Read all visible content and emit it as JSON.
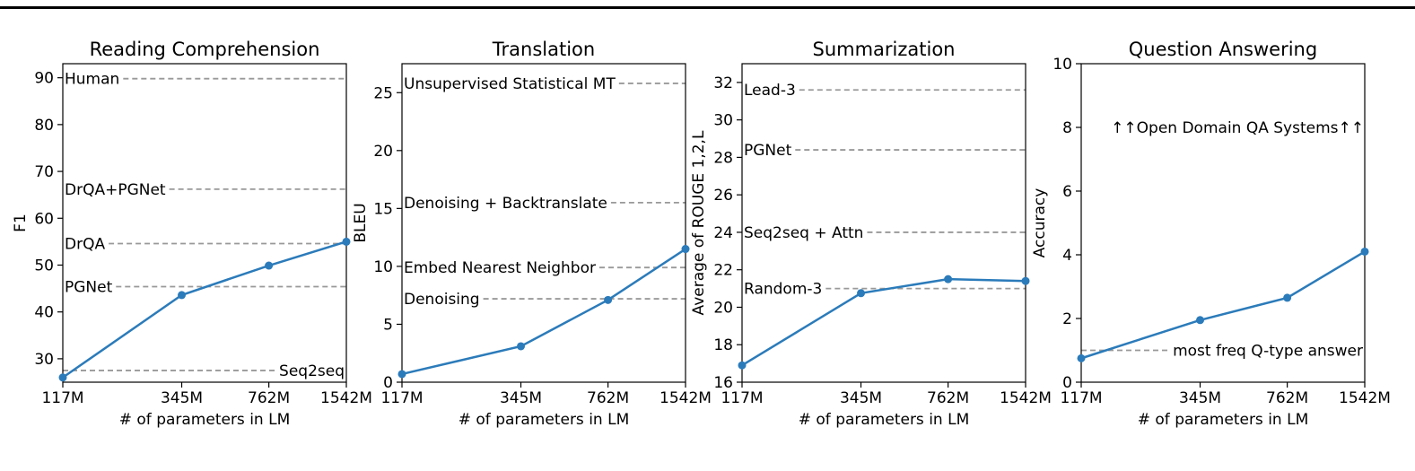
{
  "chart_data": [
    {
      "type": "line",
      "title": "Reading Comprehension",
      "xlabel": "# of parameters in LM",
      "ylabel": "F1",
      "x_scale": "log",
      "x": [
        117,
        345,
        762,
        1542
      ],
      "x_ticks": [
        "117M",
        "345M",
        "762M",
        "1542M"
      ],
      "ylim": [
        25,
        93
      ],
      "y_ticks": [
        30,
        40,
        50,
        60,
        70,
        80,
        90
      ],
      "series": [
        {
          "values": [
            26,
            43.6,
            49.9,
            55
          ]
        }
      ],
      "references": [
        {
          "label": "Human",
          "value": 89.8
        },
        {
          "label": "DrQA+PGNet",
          "value": 66.2
        },
        {
          "label": "DrQA",
          "value": 54.6
        },
        {
          "label": "PGNet",
          "value": 45.4
        },
        {
          "label": "Seq2seq",
          "value": 27.5
        }
      ],
      "grid": false,
      "line_color": "#2b7bba",
      "reference_color": "#999999"
    },
    {
      "type": "line",
      "title": "Translation",
      "xlabel": "# of parameters in LM",
      "ylabel": "BLEU",
      "x_scale": "log",
      "x": [
        117,
        345,
        762,
        1542
      ],
      "x_ticks": [
        "117M",
        "345M",
        "762M",
        "1542M"
      ],
      "ylim": [
        0,
        27.5
      ],
      "y_ticks": [
        0,
        5,
        10,
        15,
        20,
        25
      ],
      "series": [
        {
          "values": [
            0.7,
            3.1,
            7.1,
            11.5
          ]
        }
      ],
      "references": [
        {
          "label": "Unsupervised Statistical MT",
          "value": 25.8
        },
        {
          "label": "Denoising + Backtranslate",
          "value": 15.5
        },
        {
          "label": "Embed Nearest Neighbor",
          "value": 9.9
        },
        {
          "label": "Denoising",
          "value": 7.2
        }
      ],
      "grid": false,
      "line_color": "#2b7bba",
      "reference_color": "#999999"
    },
    {
      "type": "line",
      "title": "Summarization",
      "xlabel": "# of parameters in LM",
      "ylabel": "Average of ROUGE 1,2,L",
      "x_scale": "log",
      "x": [
        117,
        345,
        762,
        1542
      ],
      "x_ticks": [
        "117M",
        "345M",
        "762M",
        "1542M"
      ],
      "ylim": [
        16,
        33
      ],
      "y_ticks": [
        16,
        18,
        20,
        22,
        24,
        26,
        28,
        30,
        32
      ],
      "series": [
        {
          "values": [
            16.9,
            20.75,
            21.5,
            21.4
          ]
        }
      ],
      "references": [
        {
          "label": "Lead-3",
          "value": 31.6
        },
        {
          "label": "PGNet",
          "value": 28.4
        },
        {
          "label": "Seq2seq + Attn",
          "value": 24
        },
        {
          "label": "Random-3",
          "value": 21
        }
      ],
      "grid": false,
      "line_color": "#2b7bba",
      "reference_color": "#999999"
    },
    {
      "type": "line",
      "title": "Question Answering",
      "xlabel": "# of parameters in LM",
      "ylabel": "Accuracy",
      "x_scale": "log",
      "x": [
        117,
        345,
        762,
        1542
      ],
      "x_ticks": [
        "117M",
        "345M",
        "762M",
        "1542M"
      ],
      "ylim": [
        0,
        10
      ],
      "y_ticks": [
        0,
        2,
        4,
        6,
        8,
        10
      ],
      "series": [
        {
          "values": [
            0.75,
            1.95,
            2.65,
            4.1
          ]
        }
      ],
      "references": [
        {
          "label": "most freq Q-type answer",
          "value": 1
        }
      ],
      "annotations": [
        {
          "text": "↑↑Open Domain QA Systems↑↑",
          "y": 8
        }
      ],
      "grid": false,
      "line_color": "#2b7bba",
      "reference_color": "#999999"
    }
  ]
}
